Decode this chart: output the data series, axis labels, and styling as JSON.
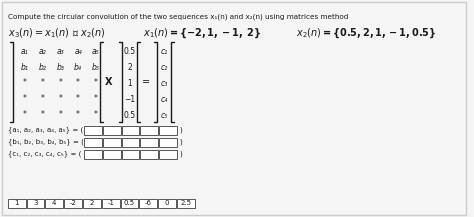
{
  "title": "Compute the circular convolution of the two sequences x₁(n) and x₂(n) using matrices method",
  "eq_main": "x₃(n) = x₁(n) Ⓢ x₂(n)",
  "eq_x1": "x₁(n) = {−2, 1, −1,  2}",
  "eq_x2": "x₂(n) = {0.5, 2, 1, −1, 0.5}",
  "matrix_rows": [
    [
      "a₁",
      "a₂",
      "a₃",
      "a₄",
      "a₅"
    ],
    [
      "b₁",
      "b₂",
      "b₃",
      "b₄",
      "b₅"
    ],
    [
      "*",
      "*",
      "*",
      "*",
      "*"
    ],
    [
      "*",
      "*",
      "*",
      "*",
      "*"
    ],
    [
      "*",
      "*",
      "*",
      "*",
      "*"
    ]
  ],
  "col_vec": [
    "0.5",
    "2",
    "1",
    "−1",
    "0.5"
  ],
  "result_vec": [
    "c₁",
    "c₂",
    "c₃",
    "c₄",
    "c₅"
  ],
  "row_labels": [
    "{a₁, a₂, a₃, a₄, a₅} = (",
    "{b₁, b₂, b₃, b₄, b₅} = (",
    "{c₁, c₂, c₃, c₄, c₅} = ("
  ],
  "answer_boxes": [
    "1",
    "3",
    "4",
    "-2",
    "2",
    "-1",
    "0.5",
    "-6",
    "0",
    "2.5"
  ],
  "bg_color": "#f5f5f5",
  "border_color": "#cccccc",
  "text_color": "#1a1a1a"
}
